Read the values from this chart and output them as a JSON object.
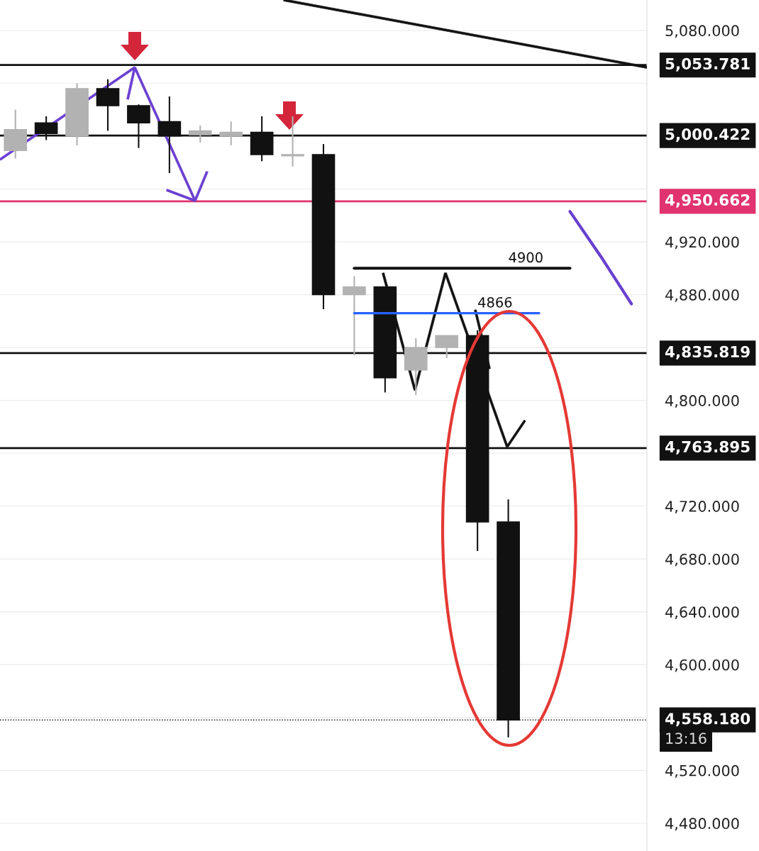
{
  "chart_data": {
    "type": "candlestick",
    "categories": [
      null,
      null,
      null,
      null,
      null,
      null,
      null,
      null,
      null,
      null,
      null,
      null,
      null,
      null,
      null,
      null,
      null,
      null,
      null,
      null,
      null
    ],
    "ohlc": [
      [
        4989,
        5020,
        4983,
        5005
      ],
      [
        5010,
        5015,
        4997,
        5002
      ],
      [
        5000,
        5040,
        4993,
        5036
      ],
      [
        5036,
        5043,
        5004,
        5023
      ],
      [
        5023,
        5024,
        4991,
        5010
      ],
      [
        5011,
        5030,
        4972,
        5000
      ],
      [
        5001,
        5008,
        4995,
        5004
      ],
      [
        5000,
        5011,
        4993,
        5003
      ],
      [
        5003,
        5015,
        4981,
        4986
      ],
      [
        4985,
        5015,
        4977,
        4986
      ],
      [
        4986,
        4994,
        4869,
        4880
      ],
      [
        4880,
        4894,
        4834,
        4886
      ],
      [
        4886,
        4886,
        4806,
        4817
      ],
      [
        4823,
        4847,
        4804,
        4840
      ],
      [
        4840,
        4849,
        4832,
        4849
      ],
      [
        4849,
        4853,
        4686,
        4708
      ],
      [
        4708,
        4725,
        4545,
        4558.18
      ],
      null,
      null,
      null,
      null
    ],
    "colors": [
      "#b2b2b2",
      "#111111",
      "#b2b2b2",
      "#111111",
      "#111111",
      "#111111",
      "#b2b2b2",
      "#b2b2b2",
      "#111111",
      "#b2b2b2",
      "#111111",
      "#b2b2b2",
      "#111111",
      "#b2b2b2",
      "#b2b2b2",
      "#111111",
      "#111111",
      null,
      null,
      null,
      null
    ],
    "series": [
      {
        "type": "line",
        "name": "4900",
        "color": "#111111",
        "values": [
          null,
          null,
          null,
          null,
          null,
          null,
          null,
          null,
          null,
          null,
          null,
          4900,
          4900,
          4900,
          4900,
          4900,
          4900,
          4900,
          4900,
          null,
          null
        ]
      },
      {
        "type": "line",
        "name": "4866",
        "color": "#2962ff",
        "values": [
          null,
          null,
          null,
          null,
          null,
          null,
          null,
          null,
          null,
          null,
          null,
          4866,
          4866,
          4866,
          4866,
          4866,
          4866,
          4866,
          null,
          null,
          null
        ]
      },
      {
        "type": "line",
        "color": "#6a3fd1",
        "values": [
          null,
          null,
          null,
          null,
          null,
          null,
          null,
          null,
          null,
          null,
          null,
          null,
          null,
          null,
          null,
          null,
          null,
          null,
          4943,
          4909,
          4873
        ]
      }
    ],
    "annotations": [
      "13:16"
    ],
    "ref_lines": [
      {
        "axis": "y",
        "value": 5053.781,
        "label": "5,053.781",
        "color": "#111111",
        "line_style": "solid"
      },
      {
        "axis": "y",
        "value": 5000.422,
        "label": "5,000.422",
        "color": "#111111",
        "line_style": "solid"
      },
      {
        "axis": "y",
        "value": 4950.662,
        "label": "4,950.662",
        "color": "#e0336f",
        "line_style": "solid"
      },
      {
        "axis": "y",
        "value": 4835.819,
        "label": "4,835.819",
        "color": "#111111",
        "line_style": "solid"
      },
      {
        "axis": "y",
        "value": 4763.895,
        "label": "4,763.895",
        "color": "#111111",
        "line_style": "solid"
      },
      {
        "axis": "y",
        "value": 4558.18,
        "label": "4,558.180",
        "color": "#111111",
        "line_style": "dotted"
      }
    ],
    "ylim": [
      4459,
      5103
    ],
    "yticks": [
      {
        "value": 4480,
        "label": "4,480.000"
      },
      {
        "value": 4520,
        "label": "4,520.000"
      },
      {
        "value": 4560,
        "label": null
      },
      {
        "value": 4600,
        "label": "4,600.000"
      },
      {
        "value": 4640,
        "label": "4,640.000"
      },
      {
        "value": 4680,
        "label": "4,680.000"
      },
      {
        "value": 4720,
        "label": "4,720.000"
      },
      {
        "value": 4760,
        "label": null
      },
      {
        "value": 4800,
        "label": "4,800.000"
      },
      {
        "value": 4840,
        "label": null
      },
      {
        "value": 4880,
        "label": "4,880.000"
      },
      {
        "value": 4920,
        "label": "4,920.000"
      },
      {
        "value": 4960,
        "label": null
      },
      {
        "value": 5000,
        "label": null
      },
      {
        "value": 5040,
        "label": null
      },
      {
        "value": 5080,
        "label": "5,080.000"
      }
    ],
    "grid": "y",
    "tick_labels": "y"
  }
}
